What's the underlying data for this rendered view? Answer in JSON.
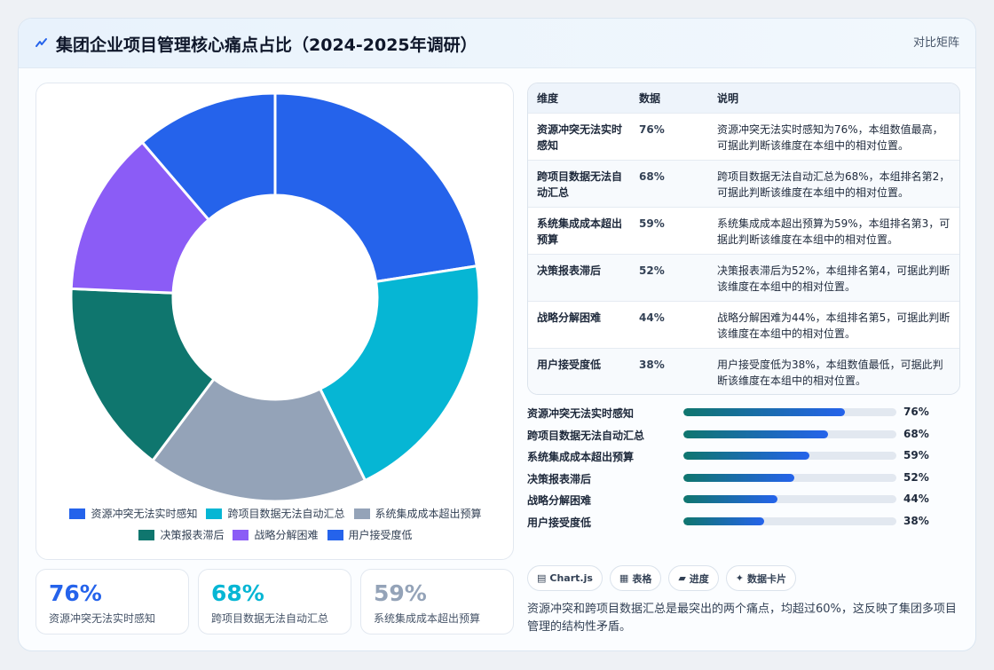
{
  "header": {
    "title": "集团企业项目管理核心痛点占比（2024-2025年调研）",
    "tag": "对比矩阵",
    "icon": "lightning-icon"
  },
  "chart_data": {
    "type": "pie",
    "categories": [
      "资源冲突无法实时感知",
      "跨项目数据无法自动汇总",
      "系统集成成本超出预算",
      "决策报表滞后",
      "战略分解困难",
      "用户接受度低"
    ],
    "values": [
      76,
      68,
      59,
      52,
      44,
      38
    ],
    "colors": [
      "#2563eb",
      "#06b6d4",
      "#94a3b8",
      "#0f766e",
      "#8b5cf6",
      "#2563eb"
    ],
    "legend_position": "bottom"
  },
  "kpis": [
    {
      "value": "76%",
      "label": "资源冲突无法实时感知",
      "color": "#2563eb"
    },
    {
      "value": "68%",
      "label": "跨项目数据无法自动汇总",
      "color": "#06b6d4"
    },
    {
      "value": "59%",
      "label": "系统集成成本超出预算",
      "color": "#94a3b8"
    }
  ],
  "table": {
    "headers": [
      "维度",
      "数据",
      "说明"
    ],
    "rows": [
      {
        "dim": "资源冲突无法实时感知",
        "val": "76%",
        "note": "资源冲突无法实时感知为76%，本组数值最高，可据此判断该维度在本组中的相对位置。"
      },
      {
        "dim": "跨项目数据无法自动汇总",
        "val": "68%",
        "note": "跨项目数据无法自动汇总为68%，本组排名第2，可据此判断该维度在本组中的相对位置。"
      },
      {
        "dim": "系统集成成本超出预算",
        "val": "59%",
        "note": "系统集成成本超出预算为59%，本组排名第3，可据此判断该维度在本组中的相对位置。"
      },
      {
        "dim": "决策报表滞后",
        "val": "52%",
        "note": "决策报表滞后为52%，本组排名第4，可据此判断该维度在本组中的相对位置。"
      },
      {
        "dim": "战略分解困难",
        "val": "44%",
        "note": "战略分解困难为44%，本组排名第5，可据此判断该维度在本组中的相对位置。"
      },
      {
        "dim": "用户接受度低",
        "val": "38%",
        "note": "用户接受度低为38%，本组数值最低，可据此判断该维度在本组中的相对位置。"
      }
    ]
  },
  "progress": [
    {
      "label": "资源冲突无法实时感知",
      "value": 76,
      "text": "76%"
    },
    {
      "label": "跨项目数据无法自动汇总",
      "value": 68,
      "text": "68%"
    },
    {
      "label": "系统集成成本超出预算",
      "value": 59,
      "text": "59%"
    },
    {
      "label": "决策报表滞后",
      "value": 52,
      "text": "52%"
    },
    {
      "label": "战略分解困难",
      "value": 44,
      "text": "44%"
    },
    {
      "label": "用户接受度低",
      "value": 38,
      "text": "38%"
    }
  ],
  "chips": [
    {
      "icon": "chart-icon",
      "glyph": "▤",
      "label": "Chart.js"
    },
    {
      "icon": "table-icon",
      "glyph": "▦",
      "label": "表格"
    },
    {
      "icon": "progress-icon",
      "glyph": "▰",
      "label": "进度"
    },
    {
      "icon": "sparkle-icon",
      "glyph": "✦",
      "label": "数据卡片"
    }
  ],
  "summary": "资源冲突和跨项目数据汇总是最突出的两个痛点，均超过60%，这反映了集团多项目管理的结构性矛盾。"
}
